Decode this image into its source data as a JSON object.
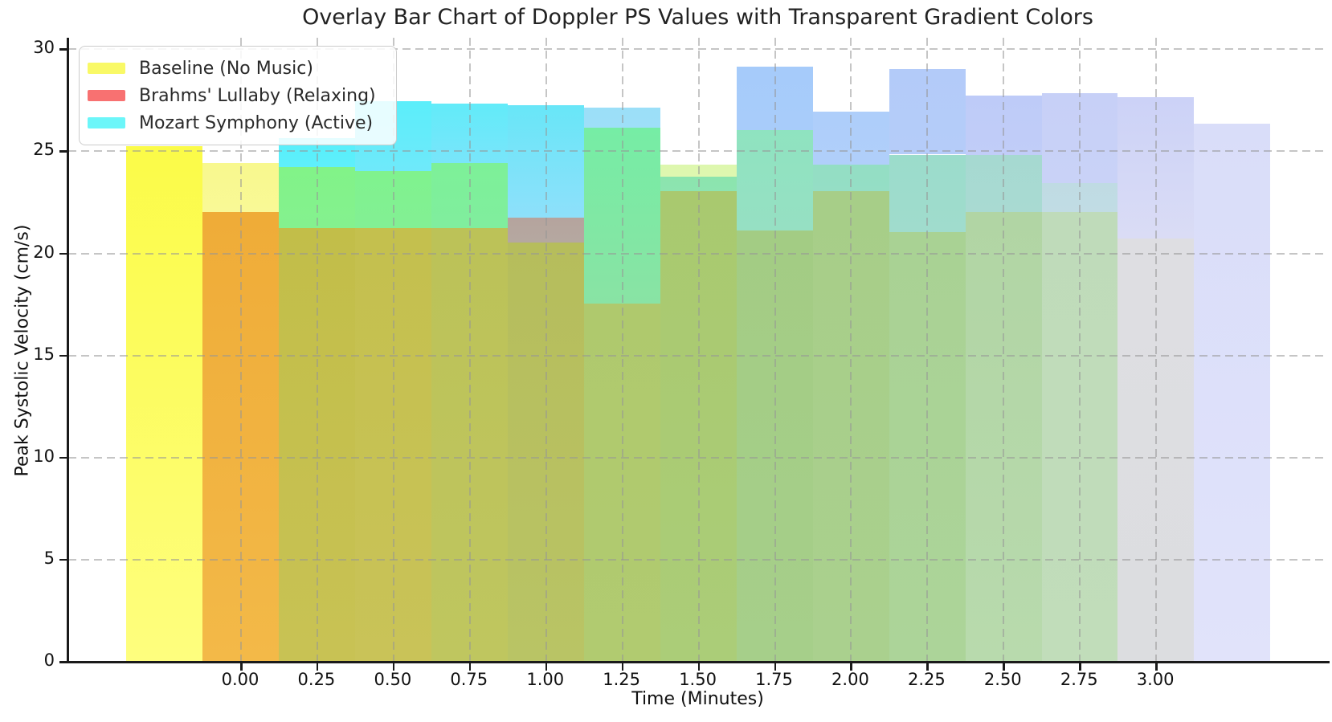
{
  "page": {
    "background": "#ffffff"
  },
  "chart_data": {
    "type": "bar",
    "title": "Overlay Bar Chart of Doppler PS Values with Transparent Gradient Colors",
    "xlabel": "Time (Minutes)",
    "ylabel": "Peak Systolic Velocity (cm/s)",
    "legend_position": "upper left",
    "grid": true,
    "grid_style": "dashed",
    "ylim": [
      0,
      30.5
    ],
    "yticks": [
      0,
      5,
      10,
      15,
      20,
      25,
      30
    ],
    "xtick_labels": [
      "0.00",
      "0.25",
      "0.50",
      "0.75",
      "1.00",
      "1.25",
      "1.50",
      "1.75",
      "2.00",
      "2.25",
      "2.50",
      "2.75",
      "3.00"
    ],
    "x_minutes": [
      0.0,
      0.25,
      0.5,
      0.75,
      1.0,
      1.25,
      1.5,
      1.75,
      2.0,
      2.25,
      2.5,
      2.75,
      3.0
    ],
    "bar_width_minutes": 0.25,
    "overlay_note": "three transparent gradient-colored series overlaid; baseline bars offset -0.25 min, Brahms at tick, Mozart +0.25 min",
    "series": [
      {
        "name": "Baseline (No Music)",
        "swatch": "#F9F966",
        "offset_minutes": -0.25,
        "values": [
          25.2,
          24.4,
          24.2,
          24.0,
          24.4,
          20.5,
          26.1,
          24.3,
          26.0,
          24.3,
          24.8,
          24.8,
          23.4
        ]
      },
      {
        "name": "Brahms' Lullaby (Relaxing)",
        "swatch": "#F87171",
        "offset_minutes": 0,
        "values": [
          22.0,
          21.2,
          21.2,
          21.2,
          21.7,
          17.5,
          23.0,
          21.1,
          23.0,
          21.0,
          22.0,
          22.0,
          20.7
        ]
      },
      {
        "name": "Mozart Symphony (Active)",
        "swatch": "#6CF6F9",
        "offset_minutes": 0.25,
        "values": [
          25.6,
          27.4,
          27.3,
          27.2,
          27.1,
          23.7,
          29.1,
          26.9,
          29.0,
          27.7,
          27.8,
          27.6,
          26.3
        ]
      }
    ],
    "rendered_columns": [
      {
        "segments": [
          {
            "top": 25.2,
            "bottom": 0,
            "color_top": "#FBFB48",
            "color_bottom": "#FEFE7E"
          }
        ]
      },
      {
        "segments": [
          {
            "top": 24.4,
            "bottom": 22.0,
            "color_top": "#F8F88E",
            "color_bottom": "#F9F996"
          },
          {
            "top": 22.0,
            "bottom": 0,
            "color_top": "#EFAC38",
            "color_bottom": "#F3B948"
          }
        ]
      },
      {
        "segments": [
          {
            "top": 25.6,
            "bottom": 24.2,
            "color_top": "#55EFFB",
            "color_bottom": "#5FEFFB"
          },
          {
            "top": 24.2,
            "bottom": 21.2,
            "color_top": "#82F388",
            "color_bottom": "#84F18F"
          },
          {
            "top": 21.2,
            "bottom": 0,
            "color_top": "#C2BE49",
            "color_bottom": "#C8C254"
          }
        ]
      },
      {
        "segments": [
          {
            "top": 27.4,
            "bottom": 24.0,
            "color_top": "#5BEEFA",
            "color_bottom": "#6FE9FA"
          },
          {
            "top": 24.0,
            "bottom": 21.2,
            "color_top": "#80F28E",
            "color_bottom": "#82F094"
          },
          {
            "top": 21.2,
            "bottom": 0,
            "color_top": "#C4C04E",
            "color_bottom": "#C9C358"
          }
        ]
      },
      {
        "segments": [
          {
            "top": 27.3,
            "bottom": 24.4,
            "color_top": "#62EBF9",
            "color_bottom": "#79E5FA"
          },
          {
            "top": 24.4,
            "bottom": 21.2,
            "color_top": "#7DF098",
            "color_bottom": "#80EE9E"
          },
          {
            "top": 21.2,
            "bottom": 0,
            "color_top": "#BCC258",
            "color_bottom": "#BFC65F"
          }
        ]
      },
      {
        "segments": [
          {
            "top": 27.2,
            "bottom": 21.7,
            "color_top": "#68E6F8",
            "color_bottom": "#8EE0FA"
          },
          {
            "top": 21.7,
            "bottom": 20.5,
            "color_top": "#B5A49E",
            "color_bottom": "#B5A8A0"
          },
          {
            "top": 20.5,
            "bottom": 0,
            "color_top": "#B6BD5C",
            "color_bottom": "#B9C465"
          }
        ]
      },
      {
        "segments": [
          {
            "top": 27.1,
            "bottom": 26.1,
            "color_top": "#9BDFF8",
            "color_bottom": "#9EDFF8"
          },
          {
            "top": 26.1,
            "bottom": 17.5,
            "color_top": "#76EDA5",
            "color_bottom": "#89E3A4"
          },
          {
            "top": 17.5,
            "bottom": 0,
            "color_top": "#AFC96D",
            "color_bottom": "#B1CB70"
          }
        ]
      },
      {
        "segments": [
          {
            "top": 24.3,
            "bottom": 23.7,
            "color_top": "#DDF7AE",
            "color_bottom": "#DFF7B0"
          },
          {
            "top": 23.7,
            "bottom": 23.0,
            "color_top": "#8BE4AE",
            "color_bottom": "#8DE4B0"
          },
          {
            "top": 23.0,
            "bottom": 0,
            "color_top": "#A9C96F",
            "color_bottom": "#ABCD78"
          }
        ]
      },
      {
        "segments": [
          {
            "top": 29.1,
            "bottom": 26.0,
            "color_top": "#A6CBFA",
            "color_bottom": "#A8CCFA"
          },
          {
            "top": 26.0,
            "bottom": 21.1,
            "color_top": "#8FE3C0",
            "color_bottom": "#96E0C3"
          },
          {
            "top": 21.1,
            "bottom": 0,
            "color_top": "#A3CC84",
            "color_bottom": "#A6CF8A"
          }
        ]
      },
      {
        "segments": [
          {
            "top": 26.9,
            "bottom": 24.3,
            "color_top": "#AECEFA",
            "color_bottom": "#B0CFFA"
          },
          {
            "top": 24.3,
            "bottom": 23.0,
            "color_top": "#93DEC4",
            "color_bottom": "#95DEC5"
          },
          {
            "top": 23.0,
            "bottom": 0,
            "color_top": "#A7CE88",
            "color_bottom": "#AAD08E"
          }
        ]
      },
      {
        "segments": [
          {
            "top": 29.0,
            "bottom": 24.8,
            "color_top": "#B3CBF9",
            "color_bottom": "#B5CCF9"
          },
          {
            "top": 24.8,
            "bottom": 21.0,
            "color_top": "#9BDCCB",
            "color_bottom": "#A0DCCD"
          },
          {
            "top": 21.0,
            "bottom": 0,
            "color_top": "#A9D294",
            "color_bottom": "#ACD499"
          }
        ]
      },
      {
        "segments": [
          {
            "top": 27.7,
            "bottom": 24.8,
            "color_top": "#BECBF8",
            "color_bottom": "#C1CDF8"
          },
          {
            "top": 24.8,
            "bottom": 22.0,
            "color_top": "#A6D9D1",
            "color_bottom": "#A9DAD2"
          },
          {
            "top": 22.0,
            "bottom": 0,
            "color_top": "#B1D5A4",
            "color_bottom": "#B8DAAD"
          }
        ]
      },
      {
        "segments": [
          {
            "top": 27.8,
            "bottom": 23.4,
            "color_top": "#C7D0F7",
            "color_bottom": "#C9D2F7"
          },
          {
            "top": 23.4,
            "bottom": 22.0,
            "color_top": "#BFDBE3",
            "color_bottom": "#C1DCE4"
          },
          {
            "top": 22.0,
            "bottom": 0,
            "color_top": "#BFDBBA",
            "color_bottom": "#C1DDBA"
          }
        ]
      },
      {
        "segments": [
          {
            "top": 27.6,
            "bottom": 20.7,
            "color_top": "#CCD2F7",
            "color_bottom": "#DADCF5"
          },
          {
            "top": 20.7,
            "bottom": 0,
            "color_top": "#DEDEE2",
            "color_bottom": "#DCDDE0"
          }
        ]
      },
      {
        "segments": [
          {
            "top": 26.3,
            "bottom": 0,
            "color_top": "#D9DDF9",
            "color_bottom": "#E1E3FA"
          }
        ]
      }
    ]
  }
}
